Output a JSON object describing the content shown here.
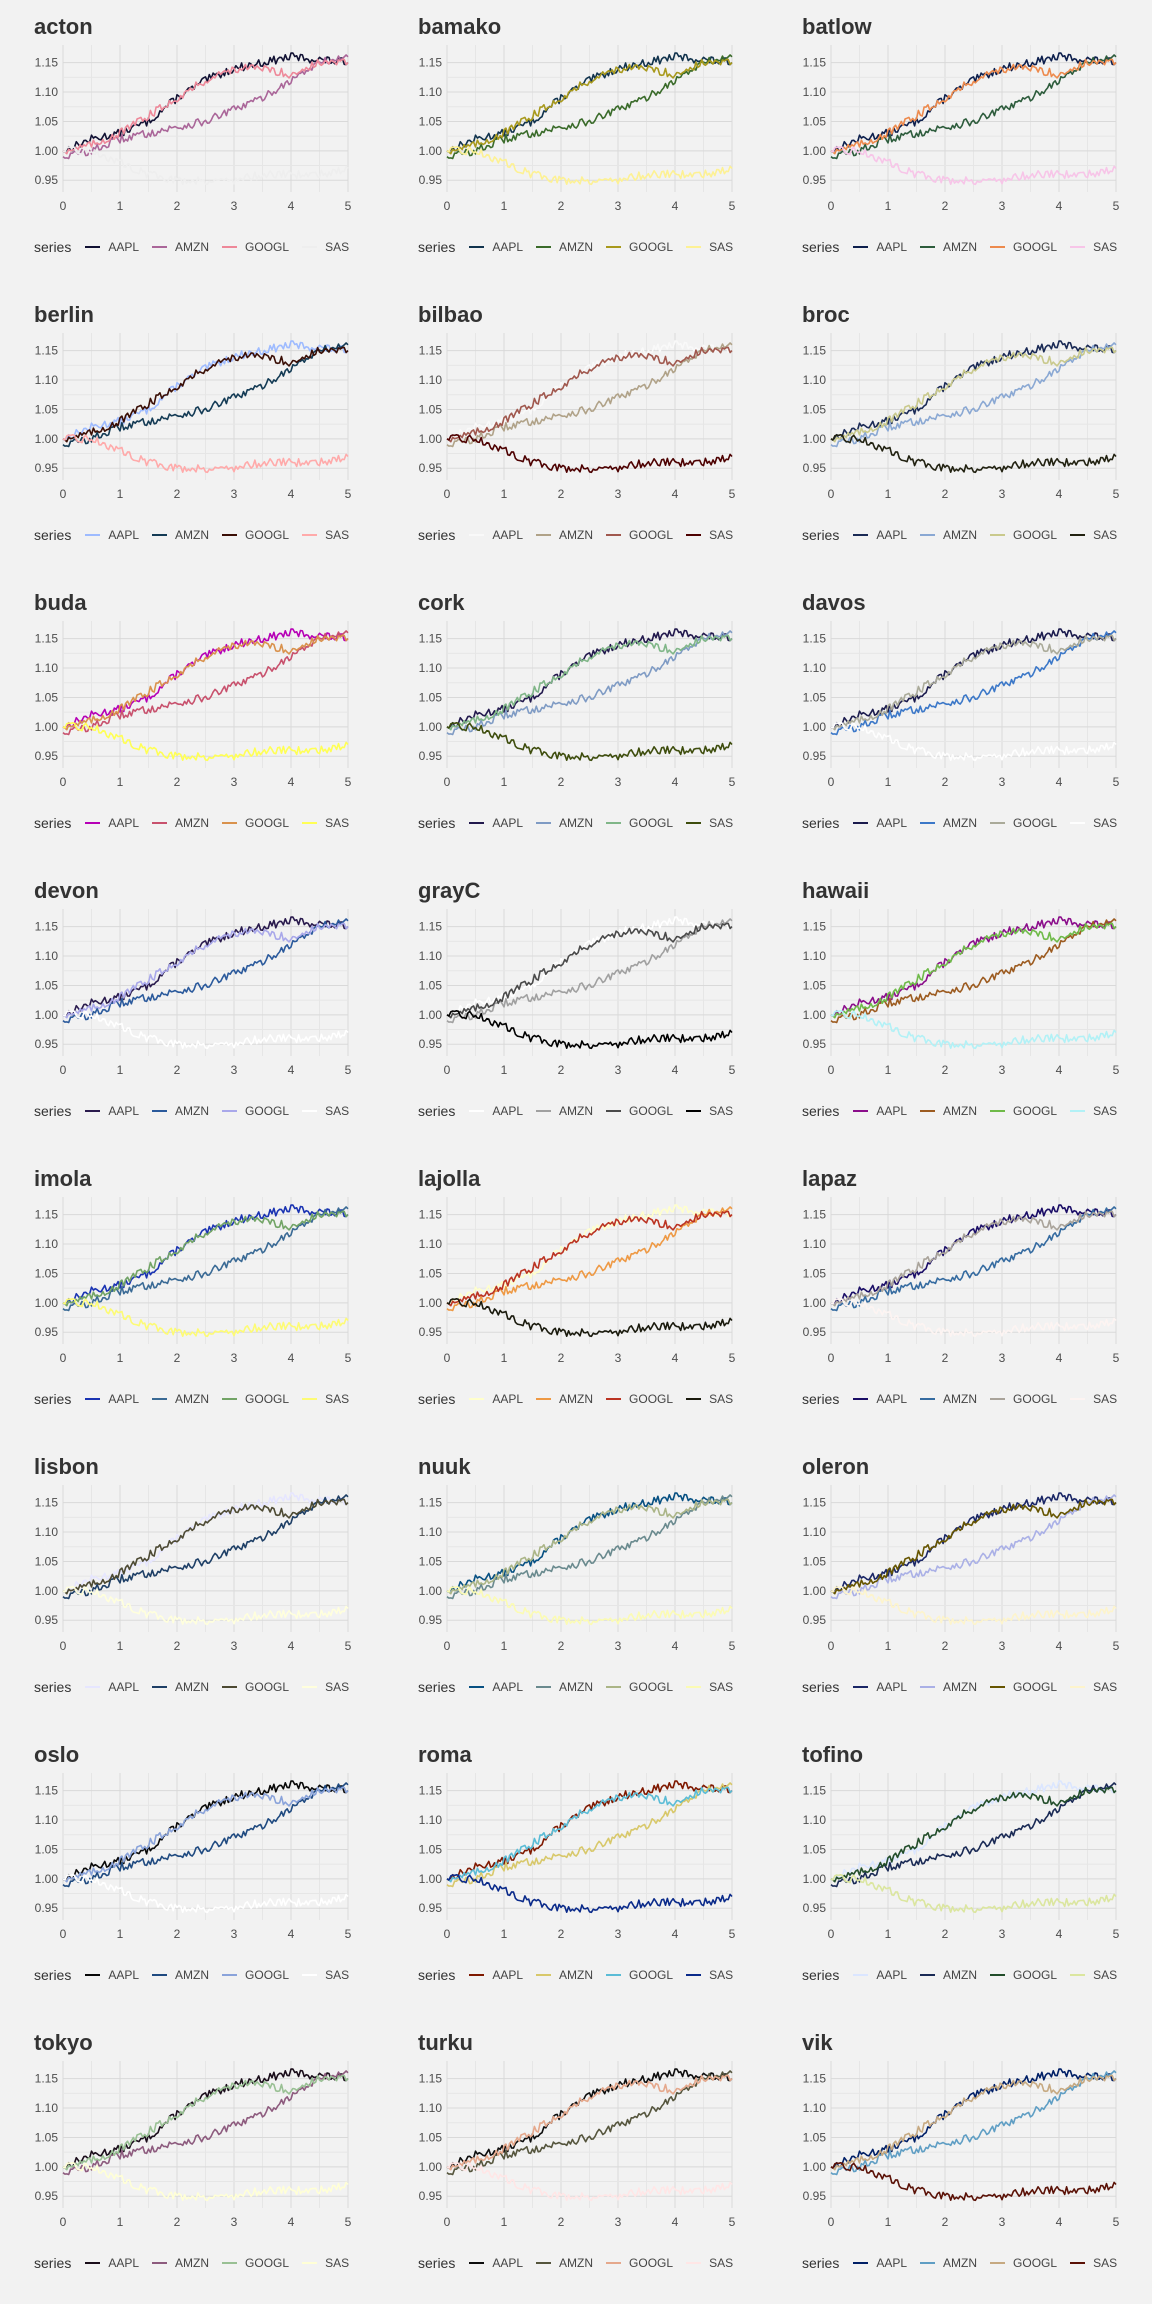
{
  "legend_title": "series",
  "chart_data": {
    "type": "line",
    "xlim": [
      0,
      5
    ],
    "ylim": [
      0.93,
      1.18
    ],
    "xticks": [
      0,
      1,
      2,
      3,
      4,
      5
    ],
    "yticks": [
      0.95,
      1.0,
      1.05,
      1.1,
      1.15
    ],
    "ytick_labels": [
      "0.95",
      "1.00",
      "1.05",
      "1.10",
      "1.15"
    ],
    "grid": true,
    "legend_position": "bottom",
    "series_names": [
      "AAPL",
      "AMZN",
      "GOOGL",
      "SAS"
    ],
    "series": [
      {
        "name": "AAPL",
        "x": [
          0,
          0.5,
          1,
          1.5,
          2,
          2.5,
          3,
          3.5,
          4,
          4.5,
          5
        ],
        "values": [
          1.0,
          1.02,
          1.03,
          1.05,
          1.09,
          1.12,
          1.14,
          1.15,
          1.16,
          1.155,
          1.15
        ]
      },
      {
        "name": "AMZN",
        "x": [
          0,
          0.5,
          1,
          1.5,
          2,
          2.5,
          3,
          3.5,
          4,
          4.5,
          5
        ],
        "values": [
          0.99,
          1.0,
          1.02,
          1.03,
          1.04,
          1.05,
          1.07,
          1.09,
          1.12,
          1.15,
          1.16
        ]
      },
      {
        "name": "GOOGL",
        "x": [
          0,
          0.5,
          1,
          1.5,
          2,
          2.5,
          3,
          3.5,
          4,
          4.5,
          5
        ],
        "values": [
          1.0,
          1.01,
          1.03,
          1.06,
          1.09,
          1.12,
          1.14,
          1.14,
          1.13,
          1.15,
          1.15
        ]
      },
      {
        "name": "SAS",
        "x": [
          0,
          0.5,
          1,
          1.5,
          2,
          2.5,
          3,
          3.5,
          4,
          4.5,
          5
        ],
        "values": [
          1.0,
          1.0,
          0.98,
          0.96,
          0.95,
          0.95,
          0.95,
          0.96,
          0.96,
          0.96,
          0.97
        ]
      }
    ],
    "panels": [
      {
        "title": "acton",
        "colors": [
          "#111133",
          "#aa6699",
          "#ee8899",
          "#eeeeee"
        ]
      },
      {
        "title": "bamako",
        "colors": [
          "#11334d",
          "#3a6b2a",
          "#a8991c",
          "#fdf194"
        ]
      },
      {
        "title": "batlow",
        "colors": [
          "#0d1f4d",
          "#2d5c3c",
          "#ed8a4d",
          "#f7c5e8"
        ]
      },
      {
        "title": "berlin",
        "colors": [
          "#9ebbff",
          "#143b55",
          "#3a0e05",
          "#ffaaaa"
        ]
      },
      {
        "title": "bilbao",
        "colors": [
          "#f9f9f9",
          "#b0a288",
          "#a0584e",
          "#4d0101"
        ]
      },
      {
        "title": "broc",
        "colors": [
          "#1a2a55",
          "#8aa8d3",
          "#c9c98c",
          "#222211"
        ]
      },
      {
        "title": "buda",
        "colors": [
          "#b600b6",
          "#c8516d",
          "#d9924d",
          "#ffff55"
        ]
      },
      {
        "title": "cork",
        "colors": [
          "#22194d",
          "#7f9bc4",
          "#80b688",
          "#3e4d0d"
        ]
      },
      {
        "title": "davos",
        "colors": [
          "#1b1b4d",
          "#3c78c8",
          "#aaaa99",
          "#fefefe"
        ]
      },
      {
        "title": "devon",
        "colors": [
          "#2a1b4d",
          "#2b5a9c",
          "#a9a8ea",
          "#ffffff"
        ]
      },
      {
        "title": "grayC",
        "colors": [
          "#ffffff",
          "#a0a0a0",
          "#4a4a4a",
          "#000000"
        ]
      },
      {
        "title": "hawaii",
        "colors": [
          "#8b0e8b",
          "#9c5b20",
          "#6fba49",
          "#b2f1f6"
        ]
      },
      {
        "title": "imola",
        "colors": [
          "#1a33b2",
          "#3a6a95",
          "#72a466",
          "#fdfb75"
        ]
      },
      {
        "title": "lajolla",
        "colors": [
          "#ffffcc",
          "#ee9944",
          "#bb3322",
          "#1a1a0d"
        ]
      },
      {
        "title": "lapaz",
        "colors": [
          "#1a0d66",
          "#356ba0",
          "#a9a39a",
          "#fdf4f2"
        ]
      },
      {
        "title": "lisbon",
        "colors": [
          "#e6e6ff",
          "#1e3f66",
          "#4d4a33",
          "#ffffdd"
        ]
      },
      {
        "title": "nuuk",
        "colors": [
          "#075082",
          "#6a8a8e",
          "#abb587",
          "#fbfbb4"
        ]
      },
      {
        "title": "oleron",
        "colors": [
          "#1a2666",
          "#aab0e6",
          "#665500",
          "#fdf4cc"
        ]
      },
      {
        "title": "oslo",
        "colors": [
          "#080808",
          "#1f4a80",
          "#8aa3da",
          "#ffffff"
        ]
      },
      {
        "title": "roma",
        "colors": [
          "#7f1900",
          "#d8c86a",
          "#5bbcd6",
          "#0a2a8a"
        ]
      },
      {
        "title": "tofino",
        "colors": [
          "#dbe6ff",
          "#1a2a55",
          "#224d2a",
          "#dbe69f"
        ]
      },
      {
        "title": "tokyo",
        "colors": [
          "#1a0d1a",
          "#8d5b7e",
          "#99c094",
          "#ffffd6"
        ]
      },
      {
        "title": "turku",
        "colors": [
          "#0d0d0d",
          "#55553d",
          "#e5a88c",
          "#ffe6e6"
        ]
      },
      {
        "title": "vik",
        "colors": [
          "#001f66",
          "#5f9ec4",
          "#c6a981",
          "#5a1106"
        ]
      }
    ]
  }
}
